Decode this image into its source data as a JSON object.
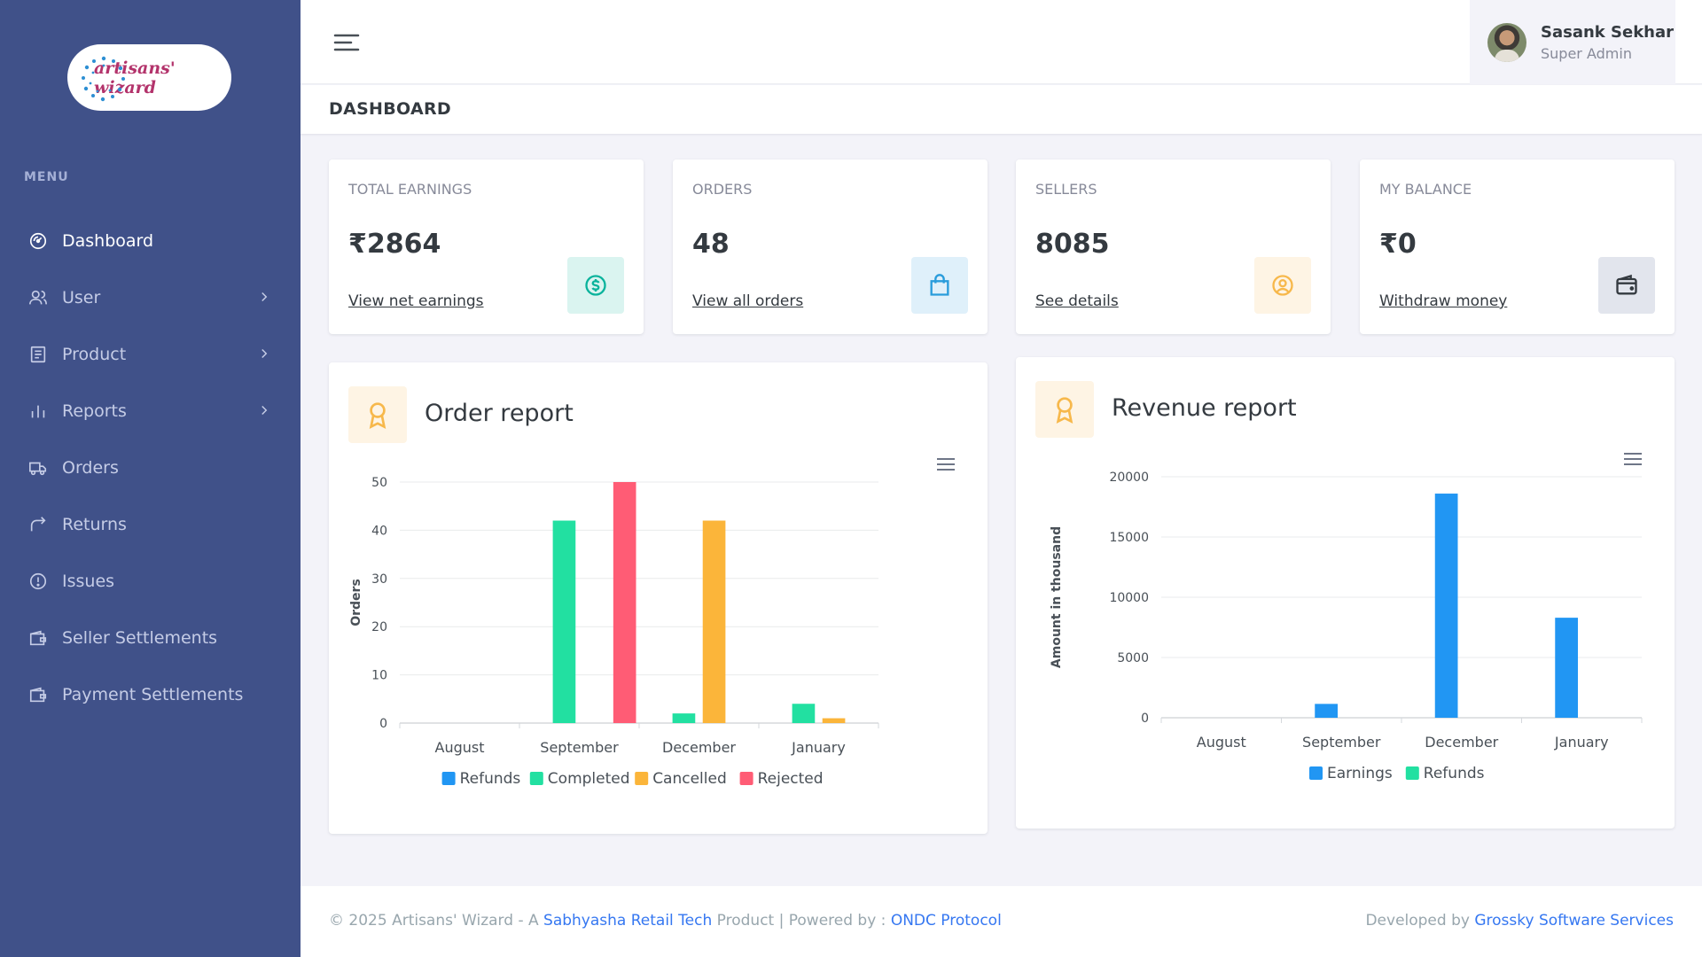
{
  "brand": {
    "logo_text": "artisans' wizard"
  },
  "sidebar": {
    "menu_title": "MENU",
    "items": [
      {
        "label": "Dashboard",
        "icon": "dashboard-icon"
      },
      {
        "label": "User",
        "icon": "user-icon"
      },
      {
        "label": "Product",
        "icon": "product-icon"
      },
      {
        "label": "Reports",
        "icon": "reports-icon"
      },
      {
        "label": "Orders",
        "icon": "truck-icon"
      },
      {
        "label": "Returns",
        "icon": "return-icon"
      },
      {
        "label": "Issues",
        "icon": "alert-circle-icon"
      },
      {
        "label": "Seller Settlements",
        "icon": "wallet-icon"
      },
      {
        "label": "Payment Settlements",
        "icon": "wallet-icon"
      }
    ]
  },
  "header": {
    "user_name": "Sasank Sekhar",
    "user_role": "Super Admin"
  },
  "page": {
    "title": "DASHBOARD"
  },
  "stats": [
    {
      "label": "TOTAL EARNINGS",
      "value": "₹2864",
      "link": "View net earnings",
      "icon": "dollar-circle-icon",
      "color": "#0ab39c",
      "bg": "#daf4f0"
    },
    {
      "label": "ORDERS",
      "value": "48",
      "link": "View all orders",
      "icon": "shopping-bag-icon",
      "color": "#299cdb",
      "bg": "#dff0fa"
    },
    {
      "label": "SELLERS",
      "value": "8085",
      "link": "See details",
      "icon": "user-circle-icon",
      "color": "#f7b84b",
      "bg": "#fef4e4"
    },
    {
      "label": "MY BALANCE",
      "value": "₹0",
      "link": "Withdraw money",
      "icon": "wallet-icon",
      "color": "#343a40",
      "bg": "#e2e5ed"
    }
  ],
  "order_report": {
    "title": "Order report"
  },
  "revenue_report": {
    "title": "Revenue report"
  },
  "chart_data": [
    {
      "type": "bar",
      "title": "Order report",
      "categories": [
        "August",
        "September",
        "December",
        "January"
      ],
      "ylabel": "Orders",
      "ylim": [
        0,
        50
      ],
      "yticks": [
        0,
        10,
        20,
        30,
        40,
        50
      ],
      "legend": "bottom",
      "series": [
        {
          "name": "Refunds",
          "color": "#2196f3",
          "values": [
            0,
            0,
            0,
            0
          ]
        },
        {
          "name": "Completed",
          "color": "#22e0a1",
          "values": [
            0,
            42,
            2,
            4
          ]
        },
        {
          "name": "Cancelled",
          "color": "#fbb53a",
          "values": [
            0,
            0,
            42,
            1
          ]
        },
        {
          "name": "Rejected",
          "color": "#ff5c75",
          "values": [
            0,
            50,
            0,
            0
          ]
        }
      ]
    },
    {
      "type": "bar",
      "title": "Revenue report",
      "categories": [
        "August",
        "September",
        "December",
        "January"
      ],
      "ylabel": "Amount in thousand",
      "ylim": [
        0,
        20000
      ],
      "yticks": [
        0,
        5000,
        10000,
        15000,
        20000
      ],
      "legend": "bottom",
      "series": [
        {
          "name": "Earnings",
          "color": "#2196f3",
          "values": [
            0,
            1150,
            18600,
            8300
          ]
        },
        {
          "name": "Refunds",
          "color": "#22e0a1",
          "values": [
            0,
            0,
            0,
            0
          ]
        }
      ]
    }
  ],
  "footer": {
    "prefix": "© 2025 Artisans' Wizard - A ",
    "company": "Sabhyasha Retail Tech",
    "middle": " Product | Powered by : ",
    "protocol": "ONDC Protocol",
    "dev_prefix": "Developed by ",
    "developer": "Grossky Software Services"
  }
}
